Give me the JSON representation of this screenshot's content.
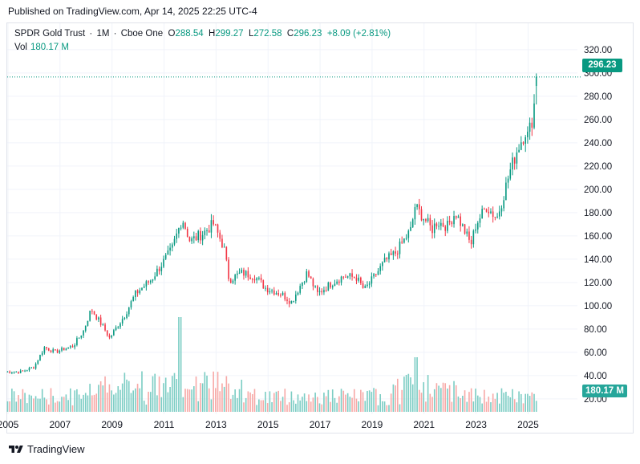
{
  "header": {
    "published": "Published on TradingView.com, Apr 14, 2025 22:25 UTC-4"
  },
  "legend": {
    "symbol": "SPDR Gold Trust",
    "interval": "1M",
    "exchange": "Cboe One",
    "o_label": "O",
    "o": "288.54",
    "h_label": "H",
    "h": "299.27",
    "l_label": "L",
    "l": "272.58",
    "c_label": "C",
    "c": "296.23",
    "change": "+8.09 (+2.81%)",
    "vol_label": "Vol",
    "vol": "180.17 M"
  },
  "last_price_tag": "296.23",
  "last_volume_tag": "180.17 M",
  "brand": "TradingView",
  "colors": {
    "up": "#089981",
    "down": "#f23645",
    "vol_up": "#7ccdc4",
    "vol_down": "#f7a9a7",
    "grid": "#f0f3fa"
  },
  "chart_data": {
    "type": "candlestick",
    "title": "SPDR Gold Trust · 1M · Cboe One",
    "y_ticks": [
      "20.00",
      "40.00",
      "60.00",
      "80.00",
      "100.00",
      "120.00",
      "140.00",
      "160.00",
      "180.00",
      "200.00",
      "220.00",
      "240.00",
      "260.00",
      "280.00",
      "300.00",
      "320.00"
    ],
    "ylim": [
      12,
      332
    ],
    "x_ticks": [
      "2005",
      "2007",
      "2009",
      "2011",
      "2013",
      "2015",
      "2017",
      "2019",
      "2021",
      "2023",
      "2025"
    ],
    "x_tick_years": [
      2005,
      2007,
      2009,
      2011,
      2013,
      2015,
      2017,
      2019,
      2021,
      2023,
      2025
    ],
    "xlim": [
      2005.0,
      2025.85
    ],
    "price_anchors": [
      [
        2004.9,
        43
      ],
      [
        2005.5,
        43
      ],
      [
        2006.0,
        47
      ],
      [
        2006.4,
        64
      ],
      [
        2006.8,
        60
      ],
      [
        2007.5,
        65
      ],
      [
        2007.9,
        78
      ],
      [
        2008.2,
        97
      ],
      [
        2008.7,
        80
      ],
      [
        2008.9,
        72
      ],
      [
        2009.5,
        92
      ],
      [
        2009.9,
        110
      ],
      [
        2010.5,
        122
      ],
      [
        2010.9,
        135
      ],
      [
        2011.3,
        148
      ],
      [
        2011.7,
        175
      ],
      [
        2012.0,
        155
      ],
      [
        2012.5,
        162
      ],
      [
        2012.9,
        170
      ],
      [
        2013.3,
        150
      ],
      [
        2013.5,
        122
      ],
      [
        2014.0,
        128
      ],
      [
        2014.5,
        125
      ],
      [
        2014.9,
        115
      ],
      [
        2015.5,
        110
      ],
      [
        2015.9,
        103
      ],
      [
        2016.5,
        128
      ],
      [
        2016.9,
        110
      ],
      [
        2017.5,
        120
      ],
      [
        2017.9,
        125
      ],
      [
        2018.4,
        124
      ],
      [
        2018.7,
        113
      ],
      [
        2019.0,
        122
      ],
      [
        2019.5,
        138
      ],
      [
        2019.9,
        145
      ],
      [
        2020.5,
        165
      ],
      [
        2020.65,
        185
      ],
      [
        2021.0,
        175
      ],
      [
        2021.3,
        165
      ],
      [
        2021.5,
        172
      ],
      [
        2021.9,
        168
      ],
      [
        2022.2,
        180
      ],
      [
        2022.6,
        162
      ],
      [
        2022.8,
        152
      ],
      [
        2023.0,
        170
      ],
      [
        2023.4,
        185
      ],
      [
        2023.8,
        175
      ],
      [
        2024.0,
        190
      ],
      [
        2024.3,
        215
      ],
      [
        2024.6,
        235
      ],
      [
        2024.9,
        250
      ],
      [
        2025.0,
        245
      ],
      [
        2025.2,
        265
      ],
      [
        2025.3,
        288.54
      ],
      [
        2025.33,
        296.23
      ]
    ],
    "volume_scale_note": "volume bars drawn in bottom pane, relative heights",
    "last_volume": "180.17 M"
  }
}
